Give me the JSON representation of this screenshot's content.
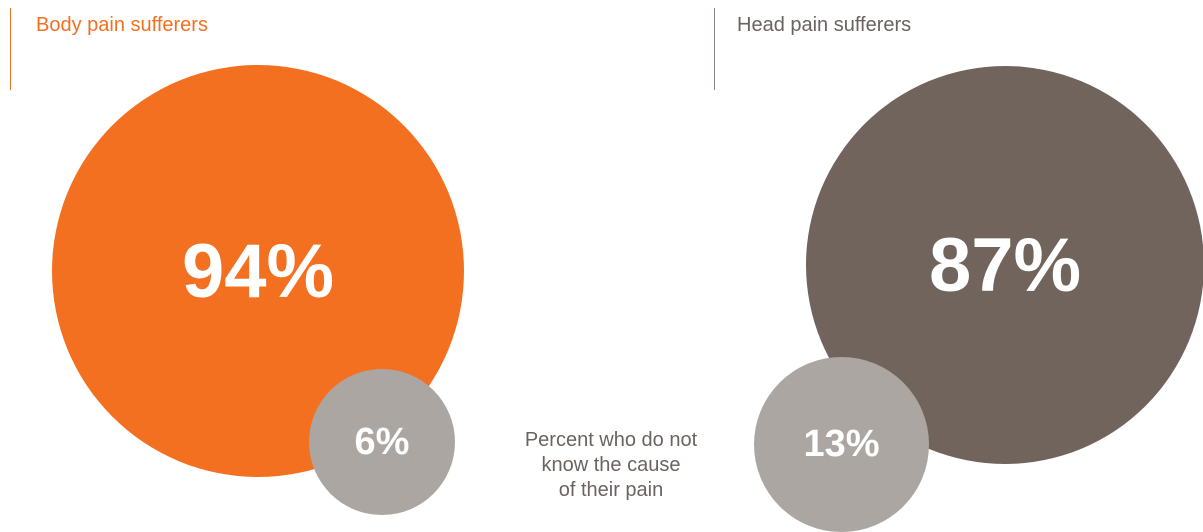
{
  "chart_data": {
    "type": "pie",
    "groups": [
      {
        "label": "Body pain sufferers",
        "major_value": 94,
        "major_label": "94%",
        "minor_value": 6,
        "minor_label": "6%",
        "major_color": "#f37021",
        "minor_color": "#aca6a2",
        "label_color": "#f37021"
      },
      {
        "label": "Head pain sufferers",
        "major_value": 87,
        "major_label": "87%",
        "minor_value": 13,
        "minor_label": "13%",
        "major_color": "#71645c",
        "minor_color": "#aca6a2",
        "label_color": "#6b6360"
      }
    ],
    "caption_lines": [
      "Percent who do not",
      "know the cause",
      "of their pain"
    ]
  },
  "colors": {
    "left_divider": "#f37021",
    "right_divider": "#8c8480"
  }
}
